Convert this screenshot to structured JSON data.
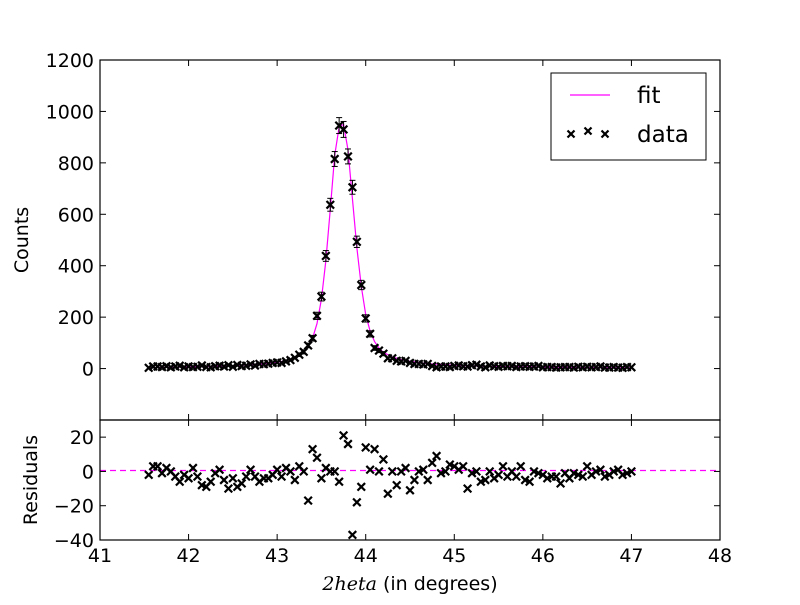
{
  "chart_data": [
    {
      "type": "scatter",
      "panel": "main",
      "ylabel": "Counts",
      "xlim": [
        41,
        48
      ],
      "ylim": [
        -200,
        1200
      ],
      "yticks": [
        "0",
        "200",
        "400",
        "600",
        "800",
        "1000",
        "1200"
      ],
      "grid": false,
      "legend": {
        "placement": "top-right",
        "entries": [
          "fit",
          "data"
        ]
      },
      "series": [
        {
          "name": "fit",
          "style": "line",
          "color": "#ff00ff",
          "x": [
            41.55,
            41.8,
            42.0,
            42.2,
            42.4,
            42.6,
            42.8,
            43.0,
            43.1,
            43.2,
            43.3,
            43.35,
            43.4,
            43.45,
            43.5,
            43.55,
            43.6,
            43.65,
            43.7,
            43.75,
            43.8,
            43.85,
            43.9,
            43.95,
            44.0,
            44.05,
            44.1,
            44.15,
            44.2,
            44.3,
            44.4,
            44.5,
            44.7,
            45.0,
            45.4,
            46.0,
            46.5,
            47.0
          ],
          "y": [
            4,
            5,
            6,
            8,
            10,
            13,
            17,
            24,
            31,
            43,
            65,
            86,
            118,
            175,
            270,
            420,
            620,
            830,
            940,
            950,
            850,
            660,
            470,
            320,
            210,
            145,
            105,
            80,
            63,
            45,
            35,
            28,
            19,
            13,
            8,
            6,
            4,
            3
          ]
        },
        {
          "name": "data",
          "style": "x-marker-with-errorbars",
          "color": "#000000",
          "x": [
            41.55,
            41.6,
            41.65,
            41.7,
            41.75,
            41.8,
            41.85,
            41.9,
            41.95,
            42.0,
            42.05,
            42.1,
            42.15,
            42.2,
            42.25,
            42.3,
            42.35,
            42.4,
            42.45,
            42.5,
            42.55,
            42.6,
            42.65,
            42.7,
            42.75,
            42.8,
            42.85,
            42.9,
            42.95,
            43.0,
            43.05,
            43.1,
            43.15,
            43.2,
            43.25,
            43.3,
            43.35,
            43.4,
            43.45,
            43.5,
            43.55,
            43.6,
            43.65,
            43.7,
            43.75,
            43.8,
            43.85,
            43.9,
            43.95,
            44.0,
            44.05,
            44.1,
            44.15,
            44.2,
            44.25,
            44.3,
            44.35,
            44.4,
            44.45,
            44.5,
            44.55,
            44.6,
            44.65,
            44.7,
            44.75,
            44.8,
            44.85,
            44.9,
            44.95,
            45.0,
            45.05,
            45.1,
            45.15,
            45.2,
            45.25,
            45.3,
            45.35,
            45.4,
            45.45,
            45.5,
            45.55,
            45.6,
            45.65,
            45.7,
            45.75,
            45.8,
            45.85,
            45.9,
            45.95,
            46.0,
            46.05,
            46.1,
            46.15,
            46.2,
            46.25,
            46.3,
            46.35,
            46.4,
            46.45,
            46.5,
            46.55,
            46.6,
            46.65,
            46.7,
            46.75,
            46.8,
            46.85,
            46.9,
            46.95,
            47.0
          ],
          "y": [
            3,
            8,
            8,
            6,
            9,
            5,
            8,
            11,
            5,
            8,
            6,
            7,
            12,
            6,
            5,
            9,
            11,
            8,
            13,
            7,
            14,
            10,
            11,
            16,
            12,
            18,
            17,
            19,
            22,
            24,
            22,
            28,
            33,
            42,
            54,
            65,
            90,
            118,
            205,
            280,
            438,
            637,
            815,
            945,
            930,
            825,
            705,
            493,
            325,
            195,
            135,
            80,
            70,
            58,
            40,
            40,
            30,
            28,
            30,
            22,
            18,
            18,
            16,
            18,
            10,
            5,
            8,
            8,
            6,
            10,
            12,
            9,
            8,
            13,
            15,
            8,
            5,
            12,
            9,
            7,
            10,
            9,
            10,
            6,
            8,
            9,
            7,
            8,
            10,
            5,
            6,
            6,
            4,
            5,
            6,
            6,
            4,
            7,
            5,
            7,
            5,
            6,
            8,
            4,
            4,
            6,
            4,
            3,
            6,
            5
          ],
          "yerr": [
            2,
            3,
            3,
            2,
            3,
            2,
            3,
            3,
            2,
            3,
            2,
            3,
            3,
            2,
            2,
            3,
            3,
            3,
            4,
            3,
            4,
            3,
            3,
            4,
            3,
            4,
            4,
            4,
            5,
            5,
            5,
            5,
            6,
            6,
            7,
            8,
            9,
            11,
            14,
            17,
            21,
            25,
            29,
            31,
            31,
            29,
            27,
            22,
            18,
            14,
            12,
            9,
            8,
            8,
            6,
            6,
            5,
            5,
            5,
            5,
            4,
            4,
            4,
            4,
            3,
            2,
            3,
            3,
            2,
            3,
            3,
            3,
            3,
            4,
            4,
            3,
            2,
            3,
            3,
            3,
            3,
            3,
            3,
            2,
            3,
            3,
            3,
            3,
            3,
            2,
            2,
            2,
            2,
            2,
            2,
            2,
            2,
            3,
            2,
            3,
            2,
            2,
            3,
            2,
            2,
            2,
            2,
            2,
            2,
            2
          ]
        }
      ]
    },
    {
      "type": "scatter",
      "panel": "residuals",
      "ylabel": "Residuals",
      "xlabel_math": "2heta",
      "xlabel_text": "(in degrees)",
      "xlim": [
        41,
        48
      ],
      "ylim": [
        -40,
        30
      ],
      "xticks": [
        "41",
        "42",
        "43",
        "44",
        "45",
        "46",
        "47",
        "48"
      ],
      "yticks": [
        "−40",
        "−20",
        "0",
        "20"
      ],
      "grid": false,
      "zero_line": {
        "y": 0,
        "color": "#ff00ff",
        "style": "dashed"
      },
      "series": [
        {
          "style": "x-marker",
          "color": "#000000",
          "x": [
            41.55,
            41.6,
            41.65,
            41.7,
            41.75,
            41.8,
            41.85,
            41.9,
            41.95,
            42.0,
            42.05,
            42.1,
            42.15,
            42.2,
            42.25,
            42.3,
            42.35,
            42.4,
            42.45,
            42.5,
            42.55,
            42.6,
            42.65,
            42.7,
            42.75,
            42.8,
            42.85,
            42.9,
            42.95,
            43.0,
            43.05,
            43.1,
            43.15,
            43.2,
            43.25,
            43.3,
            43.35,
            43.4,
            43.45,
            43.5,
            43.55,
            43.6,
            43.65,
            43.7,
            43.75,
            43.8,
            43.85,
            43.9,
            43.95,
            44.0,
            44.05,
            44.1,
            44.15,
            44.2,
            44.25,
            44.3,
            44.35,
            44.4,
            44.45,
            44.5,
            44.55,
            44.6,
            44.65,
            44.7,
            44.75,
            44.8,
            44.85,
            44.9,
            44.95,
            45.0,
            45.05,
            45.1,
            45.15,
            45.2,
            45.25,
            45.3,
            45.35,
            45.4,
            45.45,
            45.5,
            45.55,
            45.6,
            45.65,
            45.7,
            45.75,
            45.8,
            45.85,
            45.9,
            45.95,
            46.0,
            46.05,
            46.1,
            46.15,
            46.2,
            46.25,
            46.3,
            46.35,
            46.4,
            46.45,
            46.5,
            46.55,
            46.6,
            46.65,
            46.7,
            46.75,
            46.8,
            46.85,
            46.9,
            46.95,
            47.0
          ],
          "y": [
            -2,
            3,
            3,
            -1,
            2,
            0,
            -3,
            -6,
            -2,
            -4,
            2,
            -3,
            -8,
            -9,
            -6,
            -1,
            1,
            -5,
            -10,
            -4,
            -9,
            -7,
            -3,
            1,
            -3,
            -6,
            -4,
            -4,
            -2,
            1,
            -3,
            2,
            0,
            -5,
            3,
            0,
            -17,
            13,
            8,
            -4,
            2,
            0,
            0,
            -6,
            21,
            16,
            -37,
            -18,
            -9,
            14,
            1,
            13,
            0,
            7,
            -13,
            0,
            -8,
            0,
            2,
            -11,
            -5,
            0,
            1,
            -5,
            5,
            9,
            -1,
            0,
            4,
            3,
            1,
            3,
            -10,
            -1,
            0,
            -6,
            -5,
            0,
            -4,
            -2,
            3,
            -3,
            0,
            -3,
            3,
            -5,
            -6,
            0,
            -1,
            -2,
            -4,
            -3,
            -3,
            -7,
            -1,
            -4,
            -1,
            -2,
            -3,
            3,
            -2,
            0,
            1,
            -3,
            -2,
            0,
            1,
            -2,
            -1,
            0
          ]
        }
      ]
    }
  ]
}
